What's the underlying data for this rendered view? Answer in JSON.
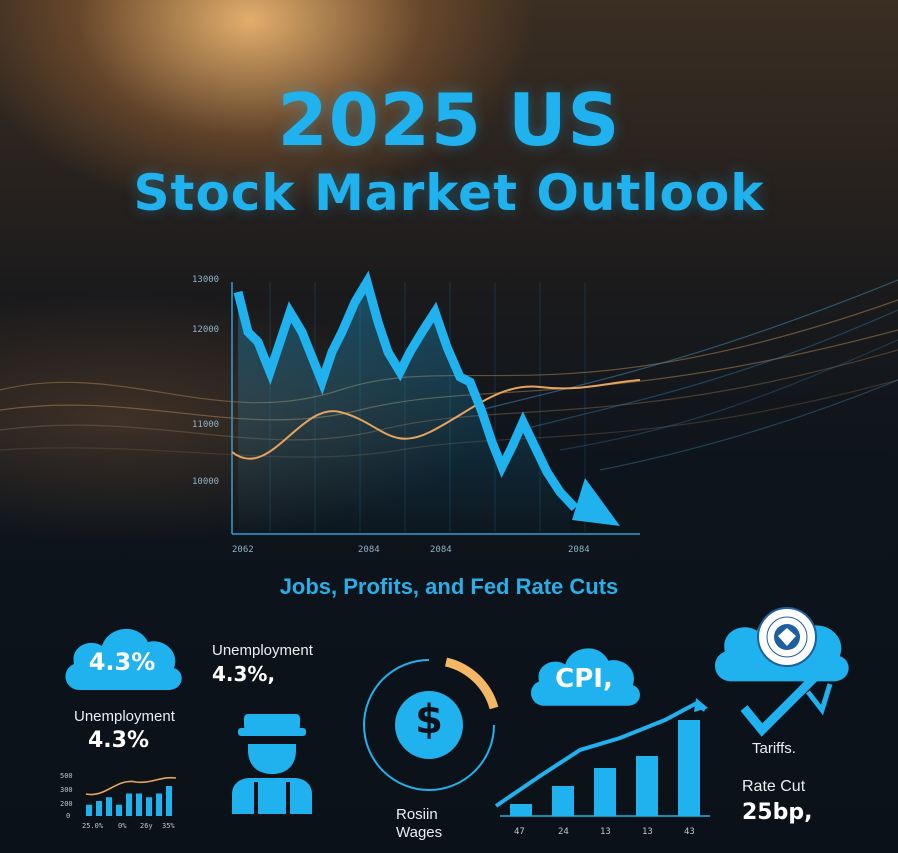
{
  "title": {
    "line1": "2025 US",
    "line2": "Stock Market Outlook"
  },
  "main_chart": {
    "y_ticks": [
      "10000",
      "11000",
      "12000",
      "13000"
    ],
    "x_ticks": [
      "2062",
      "2084",
      "2084",
      "2084"
    ]
  },
  "subtitle": "Jobs, Profits, and Fed Rate Cuts",
  "unemployment_cloud": {
    "value": "4.3%"
  },
  "unemployment_left": {
    "label": "Unemployment",
    "value": "4.3%"
  },
  "unemployment_mid": {
    "label": "Unemployment",
    "value": "4.3%,"
  },
  "mini_chart": {
    "y_ticks": [
      "500",
      "300",
      "200",
      "0"
    ],
    "x_ticks": [
      "25.0%",
      "0%",
      "26y",
      "35%"
    ],
    "values": [
      3,
      4,
      5,
      3,
      6,
      6,
      5,
      6,
      8
    ]
  },
  "wages": {
    "label_line1": "Rosiin",
    "label_line2": "Wages",
    "symbol": "$"
  },
  "cpi": {
    "cloud_label": "CPI,",
    "x_ticks": [
      "47",
      "24",
      "13",
      "13",
      "43"
    ],
    "bars": [
      1,
      2.5,
      4,
      5,
      8
    ]
  },
  "tariffs": {
    "label": "Tariffs."
  },
  "rate_cut": {
    "label": "Rate Cut",
    "value": "25bp,"
  },
  "colors": {
    "accent": "#1fb2ee",
    "orange": "#f4b765",
    "bg": "#0b1118"
  }
}
